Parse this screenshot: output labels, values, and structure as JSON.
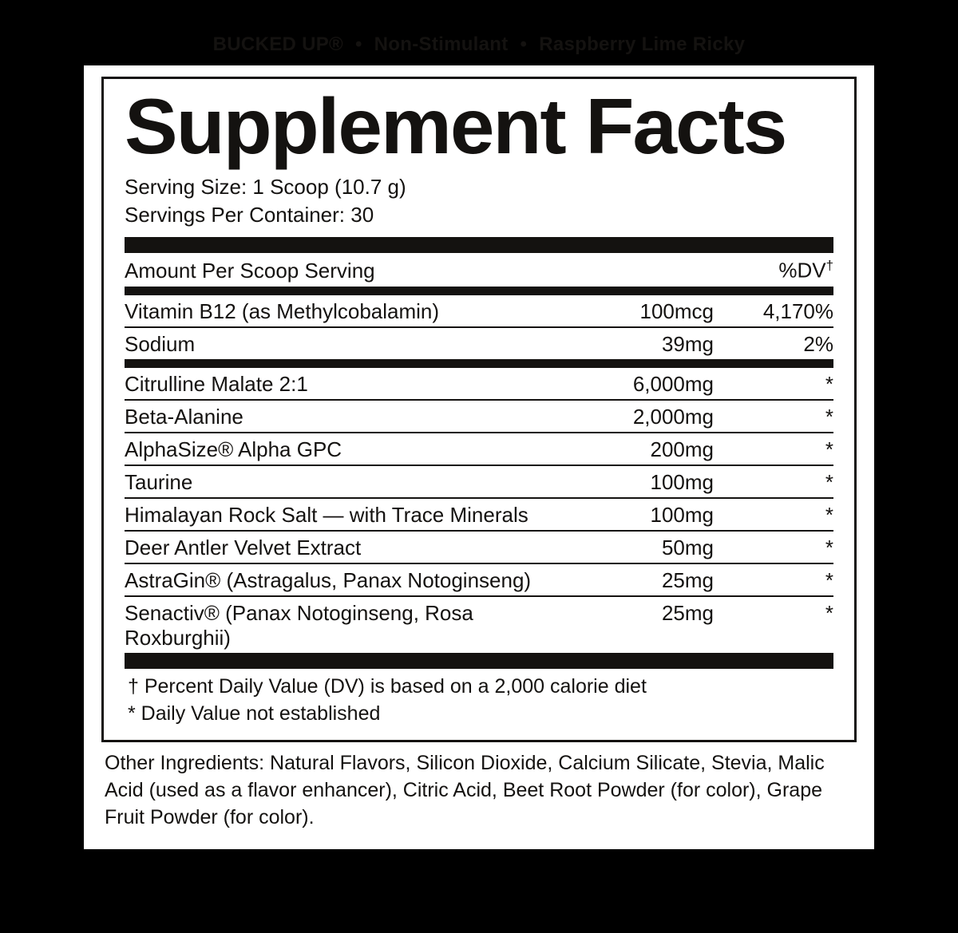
{
  "product_header": {
    "brand": "BUCKED UP®",
    "tag": "Non-Stimulant",
    "flavor": "Raspberry Lime Ricky"
  },
  "panel": {
    "title": "Supplement Facts",
    "serving_size": "Serving Size: 1 Scoop (10.7 g)",
    "servings_per_container": "Servings Per Container: 30",
    "header_left": "Amount Per Scoop Serving",
    "header_right": "%DV",
    "header_dagger": "†",
    "section1": [
      {
        "name": "Vitamin B12 (as Methylcobalamin)",
        "amount": "100mcg",
        "dv": "4,170%"
      },
      {
        "name": "Sodium",
        "amount": "39mg",
        "dv": "2%"
      }
    ],
    "section2": [
      {
        "name": "Citrulline Malate 2:1",
        "amount": "6,000mg",
        "dv": "*"
      },
      {
        "name": "Beta-Alanine",
        "amount": "2,000mg",
        "dv": "*"
      },
      {
        "name": "AlphaSize® Alpha GPC",
        "amount": "200mg",
        "dv": "*"
      },
      {
        "name": "Taurine",
        "amount": "100mg",
        "dv": "*"
      },
      {
        "name": "Himalayan Rock Salt — with Trace Minerals",
        "amount": "100mg",
        "dv": "*"
      },
      {
        "name": "Deer Antler Velvet Extract",
        "amount": "50mg",
        "dv": "*"
      },
      {
        "name": "AstraGin® (Astragalus, Panax Notoginseng)",
        "amount": "25mg",
        "dv": "*"
      },
      {
        "name": "Senactiv® (Panax Notoginseng, Rosa Roxburghii)",
        "amount": "25mg",
        "dv": "*"
      }
    ],
    "footnotes": {
      "dagger": "† Percent Daily Value (DV) is based on a 2,000 calorie diet",
      "asterisk": "* Daily Value not established"
    },
    "other_ingredients": "Other Ingredients: Natural Flavors, Silicon Dioxide, Calcium Silicate, Stevia, Malic Acid (used as a flavor enhancer), Citric Acid, Beet Root Powder (for color), Grape Fruit Powder (for color)."
  },
  "colors": {
    "background": "#000000",
    "panel_bg": "#ffffff",
    "text": "#141210",
    "border": "#141210"
  },
  "typography": {
    "title_fontsize": 98,
    "body_fontsize": 26,
    "footnote_fontsize": 25,
    "font_family": "Arial"
  }
}
